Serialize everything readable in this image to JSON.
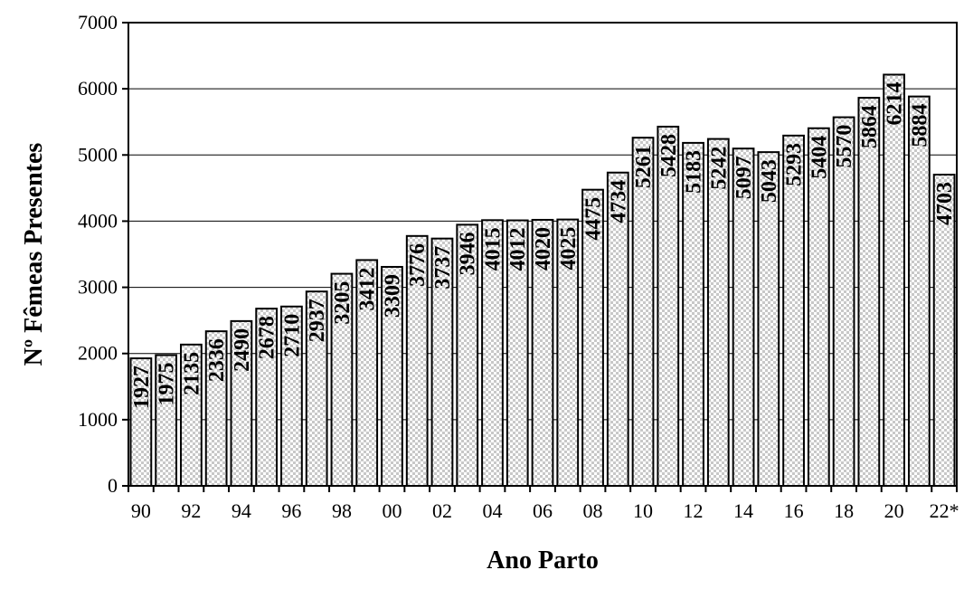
{
  "chart_data": {
    "type": "bar",
    "xlabel": "Ano Parto",
    "ylabel": "Nº Fêmeas Presentes",
    "ylim": [
      0,
      7000
    ],
    "yticks": [
      0,
      1000,
      2000,
      3000,
      4000,
      5000,
      6000,
      7000
    ],
    "grid": true,
    "categories": [
      "90",
      "91",
      "92",
      "93",
      "94",
      "95",
      "96",
      "97",
      "98",
      "99",
      "00",
      "01",
      "02",
      "03",
      "04",
      "05",
      "06",
      "07",
      "08",
      "09",
      "10",
      "11",
      "12",
      "13",
      "14",
      "15",
      "16",
      "17",
      "18",
      "19",
      "20",
      "21",
      "22*"
    ],
    "x_tick_labels": [
      "90",
      "92",
      "94",
      "96",
      "98",
      "00",
      "02",
      "04",
      "06",
      "08",
      "10",
      "12",
      "14",
      "16",
      "18",
      "20",
      "22*"
    ],
    "values": [
      1927,
      1975,
      2135,
      2336,
      2490,
      2678,
      2710,
      2937,
      3205,
      3412,
      3309,
      3776,
      3737,
      3946,
      4015,
      4012,
      4020,
      4025,
      4475,
      4734,
      5261,
      5428,
      5183,
      5242,
      5097,
      5043,
      5293,
      5404,
      5570,
      5864,
      6214,
      5884,
      4703
    ],
    "bar_pattern": "checkered light gray"
  }
}
